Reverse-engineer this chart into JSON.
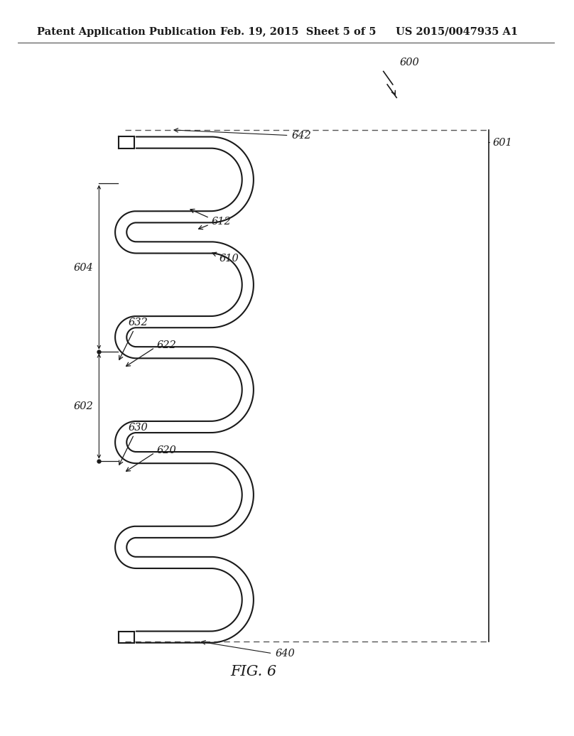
{
  "background_color": "#ffffff",
  "header_left": "Patent Application Publication",
  "header_mid": "Feb. 19, 2015  Sheet 5 of 5",
  "header_right": "US 2015/0047935 A1",
  "figure_label": "FIG. 6",
  "label_600": "600",
  "label_601": "601",
  "label_602": "602",
  "label_604": "604",
  "label_610": "610",
  "label_612": "612",
  "label_620": "620",
  "label_622": "622",
  "label_630": "630",
  "label_632": "632",
  "label_640": "640",
  "label_642": "642",
  "line_color": "#1a1a1a",
  "dashed_color": "#555555",
  "annotation_fontsize": 10.5,
  "header_fontsize": 10.5
}
